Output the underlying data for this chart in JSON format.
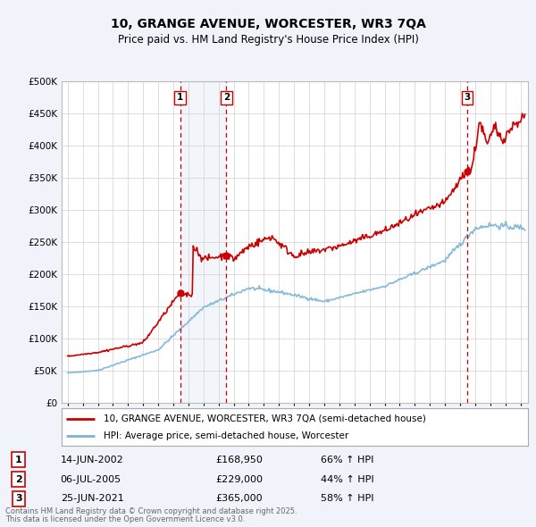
{
  "title": "10, GRANGE AVENUE, WORCESTER, WR3 7QA",
  "subtitle": "Price paid vs. HM Land Registry's House Price Index (HPI)",
  "legend_line1": "10, GRANGE AVENUE, WORCESTER, WR3 7QA (semi-detached house)",
  "legend_line2": "HPI: Average price, semi-detached house, Worcester",
  "transactions": [
    {
      "num": 1,
      "date": "14-JUN-2002",
      "price": 168950,
      "year": 2002.45,
      "pct": "66% ↑ HPI"
    },
    {
      "num": 2,
      "date": "06-JUL-2005",
      "price": 229000,
      "year": 2005.52,
      "pct": "44% ↑ HPI"
    },
    {
      "num": 3,
      "date": "25-JUN-2021",
      "price": 365000,
      "year": 2021.48,
      "pct": "58% ↑ HPI"
    }
  ],
  "footer_line1": "Contains HM Land Registry data © Crown copyright and database right 2025.",
  "footer_line2": "This data is licensed under the Open Government Licence v3.0.",
  "hpi_color": "#7ab3d4",
  "price_color": "#cc0000",
  "plot_bg": "#f0f4fa",
  "chart_bg": "#ffffff",
  "ylim": [
    0,
    500000
  ],
  "yticks": [
    0,
    50000,
    100000,
    150000,
    200000,
    250000,
    300000,
    350000,
    400000,
    450000,
    500000
  ],
  "xlim_start": 1994.6,
  "xlim_end": 2025.5
}
